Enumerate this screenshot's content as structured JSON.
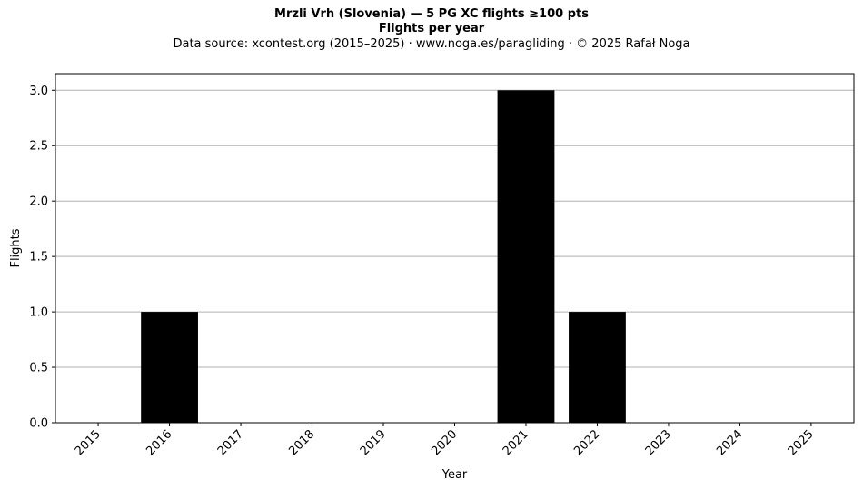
{
  "chart_data": {
    "type": "bar",
    "title": "Mrzli Vrh (Slovenia)  —  5 PG XC flights ≥100 pts",
    "subtitle": "Flights per year",
    "source_note": "Data source: xcontest.org (2015–2025)  ·  www.noga.es/paragliding  ·  © 2025 Rafał Noga",
    "xlabel": "Year",
    "ylabel": "Flights",
    "categories": [
      "2015",
      "2016",
      "2017",
      "2018",
      "2019",
      "2020",
      "2021",
      "2022",
      "2023",
      "2024",
      "2025"
    ],
    "values": [
      0,
      1,
      0,
      0,
      0,
      0,
      3,
      1,
      0,
      0,
      0
    ],
    "ylim": [
      0,
      3.15
    ],
    "yticks": [
      "0.0",
      "0.5",
      "1.0",
      "1.5",
      "2.0",
      "2.5",
      "3.0"
    ],
    "grid": "y",
    "bar_color": "#000000",
    "grid_color": "#b0b0b0"
  }
}
